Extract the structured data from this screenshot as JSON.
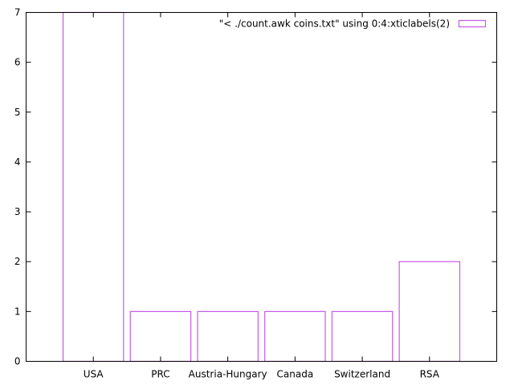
{
  "colors": {
    "series": "#c55ae6",
    "axis": "#000000",
    "background": "#ffffff"
  },
  "chart_data": {
    "type": "bar",
    "style": "outlined boxes",
    "categories": [
      "USA",
      "PRC",
      "Austria-Hungary",
      "Canada",
      "Switzerland",
      "RSA"
    ],
    "series": [
      {
        "name": "\"< ./count.awk coins.txt\" using 0:4:xticlabels(2)",
        "values": [
          7,
          1,
          1,
          1,
          1,
          2
        ]
      }
    ],
    "title": "",
    "xlabel": "",
    "ylabel": "",
    "ylim": [
      0,
      7
    ],
    "yticks": [
      0,
      1,
      2,
      3,
      4,
      5,
      6,
      7
    ],
    "grid": false,
    "legend_position": "top-right"
  }
}
